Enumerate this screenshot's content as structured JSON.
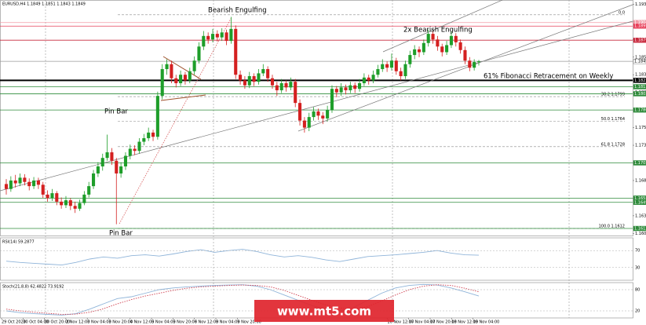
{
  "chart_data": [
    {
      "type": "candlestick",
      "title": "EURUSD,H4  1.1849 1.1851 1.1843 1.1849",
      "up_color": "#1e9e2a",
      "down_color": "#d42020",
      "ylim": [
        1.1602,
        1.1936
      ],
      "yticks": [
        {
          "value": 1.193,
          "label": "1.1930"
        },
        {
          "value": 1.1905,
          "label": "1.1905"
        },
        {
          "value": 1.188,
          "label": "1.1880"
        },
        {
          "value": 1.1855,
          "label": "1.1855"
        },
        {
          "value": 1.183,
          "label": "1.1830"
        },
        {
          "value": 1.1805,
          "label": "1.1805"
        },
        {
          "value": 1.178,
          "label": "1.1780"
        },
        {
          "value": 1.1755,
          "label": "1.1755"
        },
        {
          "value": 1.173,
          "label": "1.1730"
        },
        {
          "value": 1.1705,
          "label": "1.1705"
        },
        {
          "value": 1.168,
          "label": "1.1680"
        },
        {
          "value": 1.1655,
          "label": "1.1655"
        },
        {
          "value": 1.163,
          "label": "1.1630"
        },
        {
          "value": 1.1605,
          "label": "1.1605"
        }
      ],
      "levels": [
        {
          "value": 1.1904,
          "label": "1.1904",
          "color": "#f29aa6"
        },
        {
          "value": 1.1899,
          "label": "1.1899",
          "color": "#e8405a"
        },
        {
          "value": 1.1879,
          "label": "1.1879",
          "color": "#c8283c"
        },
        {
          "value": 1.1849,
          "label": "1.1849",
          "color": "#ffffff"
        },
        {
          "value": 1.1822,
          "label": "1.1822",
          "color": "#000000"
        },
        {
          "value": 1.1813,
          "label": "1.1813",
          "color": "#2e8b3a"
        },
        {
          "value": 1.1803,
          "label": "1.1803",
          "color": "#2e8b3a"
        },
        {
          "value": 1.178,
          "label": "1.1780",
          "color": "#2e8b3a"
        },
        {
          "value": 1.1705,
          "label": "1.1705",
          "color": "#2e8b3a"
        },
        {
          "value": 1.1655,
          "label": "1.1655",
          "color": "#2e8b3a"
        },
        {
          "value": 1.1649,
          "label": "1.1649",
          "color": "#2e8b3a"
        },
        {
          "value": 1.1612,
          "label": "1.1612",
          "color": "#2e8b3a"
        }
      ],
      "fib_levels": [
        {
          "value": 1.1915,
          "label": "0.0"
        },
        {
          "value": 1.1799,
          "label": "38.2 1.1799"
        },
        {
          "value": 1.1764,
          "label": "50.0 1.1764"
        },
        {
          "value": 1.1728,
          "label": "61.8 1.1728"
        },
        {
          "value": 1.1612,
          "label": "100.0 1.1612"
        }
      ],
      "annotations": [
        "Bearish Engulfing",
        "2x Bearish Engulfing",
        "61% Fibonacci Retracement on Weekly",
        "Pin Bar",
        "Pin Bar"
      ],
      "watermark": "www.mt5.com",
      "x_labels": [
        "29 Oct 2020",
        "30 Oct 04:00",
        "30 Oct 20:00",
        "2 Nov 12:00",
        "3 Nov 04:00",
        "3 Nov 20:00",
        "4 Nov 12:00",
        "5 Nov 04:00",
        "5 Nov 20:00",
        "6 Nov 12:00",
        "9 Nov 04:00",
        "9 Nov 20:00",
        null,
        null,
        null,
        null,
        null,
        null,
        "16 Nov 12:00",
        "17 Nov 04:00",
        "17 Nov 20:00",
        "18 Nov 12:00",
        "19 Nov 04:00"
      ],
      "ohlc": [
        [
          1.1675,
          1.1682,
          1.166,
          1.1668
        ],
        [
          1.1668,
          1.1686,
          1.1664,
          1.168
        ],
        [
          1.168,
          1.1688,
          1.167,
          1.1676
        ],
        [
          1.1676,
          1.169,
          1.1672,
          1.1684
        ],
        [
          1.1684,
          1.1689,
          1.1673,
          1.1678
        ],
        [
          1.1678,
          1.1683,
          1.1666,
          1.1672
        ],
        [
          1.1672,
          1.1685,
          1.1668,
          1.168
        ],
        [
          1.168,
          1.1684,
          1.1668,
          1.1674
        ],
        [
          1.1674,
          1.1678,
          1.1655,
          1.166
        ],
        [
          1.166,
          1.1666,
          1.165,
          1.1655
        ],
        [
          1.1655,
          1.1668,
          1.1651,
          1.1662
        ],
        [
          1.1662,
          1.1665,
          1.1645,
          1.165
        ],
        [
          1.165,
          1.1656,
          1.164,
          1.1645
        ],
        [
          1.1645,
          1.1658,
          1.1641,
          1.1652
        ],
        [
          1.1652,
          1.1655,
          1.1638,
          1.1644
        ],
        [
          1.1644,
          1.165,
          1.1634,
          1.164
        ],
        [
          1.164,
          1.1653,
          1.1637,
          1.1648
        ],
        [
          1.1648,
          1.1665,
          1.1645,
          1.166
        ],
        [
          1.166,
          1.1678,
          1.1656,
          1.1672
        ],
        [
          1.1672,
          1.1695,
          1.1668,
          1.169
        ],
        [
          1.169,
          1.1706,
          1.1685,
          1.17
        ],
        [
          1.17,
          1.1718,
          1.1694,
          1.1712
        ],
        [
          1.1712,
          1.1745,
          1.1708,
          1.172
        ],
        [
          1.172,
          1.1726,
          1.1702,
          1.1708
        ],
        [
          1.1708,
          1.1712,
          1.1618,
          1.169
        ],
        [
          1.169,
          1.1706,
          1.1684,
          1.17
        ],
        [
          1.17,
          1.172,
          1.1695,
          1.1715
        ],
        [
          1.1715,
          1.1731,
          1.171,
          1.1725
        ],
        [
          1.1725,
          1.173,
          1.1716,
          1.1722
        ],
        [
          1.1722,
          1.174,
          1.1718,
          1.1735
        ],
        [
          1.1735,
          1.1746,
          1.173,
          1.174
        ],
        [
          1.174,
          1.1755,
          1.1736,
          1.1748
        ],
        [
          1.1748,
          1.1752,
          1.1736,
          1.1742
        ],
        [
          1.1742,
          1.1806,
          1.1738,
          1.18
        ],
        [
          1.18,
          1.1845,
          1.1795,
          1.1838
        ],
        [
          1.1838,
          1.1852,
          1.183,
          1.1845
        ],
        [
          1.1845,
          1.185,
          1.1818,
          1.1825
        ],
        [
          1.1825,
          1.183,
          1.1812,
          1.1818
        ],
        [
          1.1818,
          1.1836,
          1.1814,
          1.183
        ],
        [
          1.183,
          1.1834,
          1.1816,
          1.1822
        ],
        [
          1.1822,
          1.184,
          1.1818,
          1.1835
        ],
        [
          1.1835,
          1.1856,
          1.183,
          1.185
        ],
        [
          1.185,
          1.1876,
          1.1846,
          1.187
        ],
        [
          1.187,
          1.1892,
          1.1865,
          1.1885
        ],
        [
          1.1885,
          1.189,
          1.1874,
          1.188
        ],
        [
          1.188,
          1.1895,
          1.1876,
          1.1888
        ],
        [
          1.1888,
          1.1893,
          1.1877,
          1.1883
        ],
        [
          1.1883,
          1.1896,
          1.1878,
          1.189
        ],
        [
          1.189,
          1.1894,
          1.1872,
          1.1878
        ],
        [
          1.1878,
          1.1912,
          1.1874,
          1.1895
        ],
        [
          1.1895,
          1.19,
          1.1824,
          1.183
        ],
        [
          1.183,
          1.1836,
          1.1816,
          1.1822
        ],
        [
          1.1822,
          1.1828,
          1.181,
          1.1815
        ],
        [
          1.1815,
          1.1834,
          1.1811,
          1.1828
        ],
        [
          1.1828,
          1.1832,
          1.1814,
          1.182
        ],
        [
          1.182,
          1.1838,
          1.1816,
          1.1832
        ],
        [
          1.1832,
          1.1845,
          1.1828,
          1.1838
        ],
        [
          1.1838,
          1.1842,
          1.182,
          1.1825
        ],
        [
          1.1825,
          1.183,
          1.181,
          1.1815
        ],
        [
          1.1815,
          1.182,
          1.18,
          1.1808
        ],
        [
          1.1808,
          1.1824,
          1.1804,
          1.1818
        ],
        [
          1.1818,
          1.1822,
          1.1806,
          1.1812
        ],
        [
          1.1812,
          1.1826,
          1.1808,
          1.182
        ],
        [
          1.182,
          1.1824,
          1.1784,
          1.179
        ],
        [
          1.179,
          1.1795,
          1.1758,
          1.1765
        ],
        [
          1.1765,
          1.177,
          1.1748,
          1.1755
        ],
        [
          1.1755,
          1.1776,
          1.175,
          1.177
        ],
        [
          1.177,
          1.1784,
          1.1765,
          1.1778
        ],
        [
          1.1778,
          1.1782,
          1.1766,
          1.1772
        ],
        [
          1.1772,
          1.1777,
          1.176,
          1.1768
        ],
        [
          1.1768,
          1.1786,
          1.1764,
          1.178
        ],
        [
          1.178,
          1.1815,
          1.1776,
          1.181
        ],
        [
          1.181,
          1.1814,
          1.1798,
          1.1805
        ],
        [
          1.1805,
          1.1818,
          1.18,
          1.1812
        ],
        [
          1.1812,
          1.1816,
          1.1802,
          1.1808
        ],
        [
          1.1808,
          1.182,
          1.1804,
          1.1815
        ],
        [
          1.1815,
          1.1819,
          1.1804,
          1.181
        ],
        [
          1.181,
          1.1824,
          1.1806,
          1.1818
        ],
        [
          1.1818,
          1.1832,
          1.1814,
          1.1826
        ],
        [
          1.1826,
          1.183,
          1.1816,
          1.1822
        ],
        [
          1.1822,
          1.1836,
          1.1818,
          1.183
        ],
        [
          1.183,
          1.1844,
          1.1826,
          1.1838
        ],
        [
          1.1838,
          1.1852,
          1.1834,
          1.1845
        ],
        [
          1.1845,
          1.1849,
          1.1834,
          1.184
        ],
        [
          1.184,
          1.186,
          1.1836,
          1.185
        ],
        [
          1.185,
          1.1854,
          1.183,
          1.1835
        ],
        [
          1.1835,
          1.184,
          1.1822,
          1.1828
        ],
        [
          1.1828,
          1.185,
          1.1824,
          1.1845
        ],
        [
          1.1845,
          1.1864,
          1.184,
          1.1858
        ],
        [
          1.1858,
          1.1872,
          1.1852,
          1.1866
        ],
        [
          1.1866,
          1.187,
          1.1855,
          1.1862
        ],
        [
          1.1862,
          1.188,
          1.1858,
          1.1875
        ],
        [
          1.1875,
          1.1894,
          1.187,
          1.1888
        ],
        [
          1.1888,
          1.1892,
          1.1874,
          1.188
        ],
        [
          1.188,
          1.1885,
          1.1864,
          1.187
        ],
        [
          1.187,
          1.1874,
          1.1856,
          1.1862
        ],
        [
          1.1862,
          1.1878,
          1.1858,
          1.1872
        ],
        [
          1.1872,
          1.1891,
          1.1868,
          1.1885
        ],
        [
          1.1885,
          1.1889,
          1.187,
          1.1876
        ],
        [
          1.1876,
          1.188,
          1.186,
          1.1865
        ],
        [
          1.1865,
          1.187,
          1.1845,
          1.185
        ],
        [
          1.185,
          1.1855,
          1.1835,
          1.184
        ],
        [
          1.184,
          1.1852,
          1.1836,
          1.1848
        ],
        [
          1.1848,
          1.1851,
          1.1843,
          1.1849
        ]
      ]
    },
    {
      "type": "line",
      "title": "RSI(14) 59.2877",
      "ylim": [
        0,
        100
      ],
      "yticks": [
        30,
        70
      ],
      "series": [
        {
          "color": "#8fb4d9",
          "values": [
            45,
            42,
            40,
            38,
            36,
            42,
            50,
            55,
            52,
            58,
            60,
            57,
            62,
            68,
            72,
            66,
            70,
            73,
            68,
            60,
            55,
            58,
            54,
            48,
            44,
            50,
            56,
            58,
            60,
            63,
            66,
            70,
            64,
            60,
            59
          ]
        }
      ]
    },
    {
      "type": "line",
      "title": "Stoch(21,8,8) 62.4822 73.9192",
      "ylim": [
        0,
        100
      ],
      "yticks": [
        20,
        80
      ],
      "series": [
        {
          "color": "#8fb4d9",
          "values": [
            20,
            15,
            12,
            10,
            8,
            12,
            25,
            40,
            55,
            60,
            70,
            80,
            85,
            88,
            90,
            92,
            93,
            94,
            90,
            80,
            65,
            50,
            35,
            25,
            20,
            30,
            50,
            70,
            85,
            92,
            95,
            93,
            85,
            74,
            62
          ]
        },
        {
          "color": "#d04050",
          "dash": true,
          "values": [
            25,
            20,
            16,
            13,
            10,
            11,
            16,
            26,
            40,
            52,
            62,
            70,
            78,
            84,
            88,
            90,
            92,
            93,
            92,
            88,
            78,
            64,
            50,
            37,
            28,
            25,
            32,
            48,
            65,
            80,
            90,
            94,
            92,
            84,
            74
          ]
        }
      ]
    }
  ]
}
